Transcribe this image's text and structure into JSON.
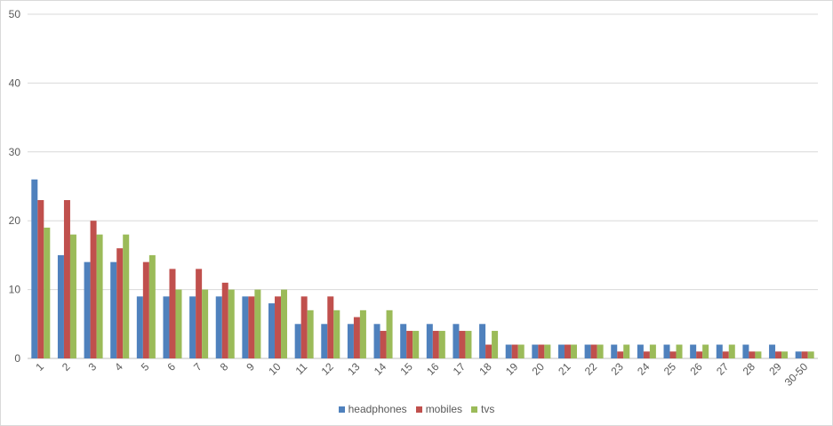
{
  "chart_data": {
    "type": "bar",
    "title": "",
    "xlabel": "",
    "ylabel": "",
    "ylim": [
      0,
      50
    ],
    "yticks": [
      "0",
      "10",
      "20",
      "30",
      "40",
      "50"
    ],
    "grid": true,
    "legend_position": "bottom",
    "categories": [
      "1",
      "2",
      "3",
      "4",
      "5",
      "6",
      "7",
      "8",
      "9",
      "10",
      "11",
      "12",
      "13",
      "14",
      "15",
      "16",
      "17",
      "18",
      "19",
      "20",
      "21",
      "22",
      "23",
      "24",
      "25",
      "26",
      "27",
      "28",
      "29",
      "30-50"
    ],
    "series": [
      {
        "name": "headphones",
        "color": "#4f81bd",
        "values": [
          26,
          15,
          14,
          14,
          9,
          9,
          9,
          9,
          9,
          8,
          5,
          5,
          5,
          5,
          5,
          5,
          5,
          5,
          2,
          2,
          2,
          2,
          2,
          2,
          2,
          2,
          2,
          2,
          2,
          1
        ]
      },
      {
        "name": "mobiles",
        "color": "#c0504d",
        "values": [
          23,
          23,
          20,
          16,
          14,
          13,
          13,
          11,
          9,
          9,
          9,
          9,
          6,
          4,
          4,
          4,
          4,
          2,
          2,
          2,
          2,
          2,
          1,
          1,
          1,
          1,
          1,
          1,
          1,
          1
        ]
      },
      {
        "name": "tvs",
        "color": "#9bbb59",
        "values": [
          19,
          18,
          18,
          18,
          15,
          10,
          10,
          10,
          10,
          10,
          7,
          7,
          7,
          7,
          4,
          4,
          4,
          4,
          2,
          2,
          2,
          2,
          2,
          2,
          2,
          2,
          2,
          1,
          1,
          1
        ]
      }
    ]
  }
}
